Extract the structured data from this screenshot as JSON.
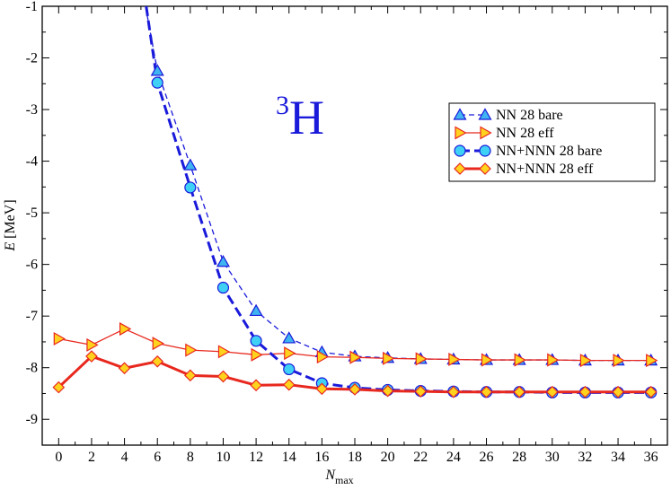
{
  "chart_data": {
    "type": "line",
    "annotation": {
      "mass_number": "3",
      "element": "H",
      "color": "#1a1adb"
    },
    "xlabel": {
      "main": "N",
      "sub": "max"
    },
    "ylabel": {
      "main": "E",
      "rest": " [MeV]"
    },
    "xlim": [
      -1,
      37
    ],
    "ylim": [
      -9.5,
      -1
    ],
    "xticks": [
      0,
      2,
      4,
      6,
      8,
      10,
      12,
      14,
      16,
      18,
      20,
      22,
      24,
      26,
      28,
      30,
      32,
      34,
      36
    ],
    "yticks": [
      -9,
      -8,
      -7,
      -6,
      -5,
      -4,
      -3,
      -2,
      -1
    ],
    "grid": false,
    "legend_position": "top-right",
    "series": [
      {
        "name": "NN 28 bare",
        "marker": "triangle-up",
        "line_color": "#1a1adb",
        "marker_fill": "#3fb4f0",
        "dash": "6,4",
        "line_width": 1.3,
        "x": [
          6,
          8,
          10,
          12,
          14,
          16,
          18,
          20,
          22,
          24,
          26,
          28,
          30,
          32,
          34,
          36
        ],
        "y": [
          -2.25,
          -4.08,
          -5.95,
          -6.9,
          -7.43,
          -7.7,
          -7.78,
          -7.81,
          -7.83,
          -7.84,
          -7.85,
          -7.85,
          -7.85,
          -7.86,
          -7.86,
          -7.86
        ],
        "curve_start": {
          "x": 5.28,
          "y": -1.0
        }
      },
      {
        "name": "NN 28 eff",
        "marker": "triangle-right",
        "line_color": "#e8281e",
        "marker_fill": "#ffd21e",
        "dash": "",
        "line_width": 1.3,
        "x": [
          0,
          2,
          4,
          6,
          8,
          10,
          12,
          14,
          16,
          18,
          20,
          22,
          24,
          26,
          28,
          30,
          32,
          34,
          36
        ],
        "y": [
          -7.44,
          -7.56,
          -7.25,
          -7.53,
          -7.66,
          -7.69,
          -7.75,
          -7.72,
          -7.79,
          -7.8,
          -7.82,
          -7.83,
          -7.84,
          -7.85,
          -7.85,
          -7.85,
          -7.86,
          -7.86,
          -7.86
        ]
      },
      {
        "name": "NN+NNN 28 bare",
        "marker": "circle",
        "line_color": "#1a1adb",
        "marker_fill": "#3fd0f5",
        "dash": "11,5",
        "line_width": 3,
        "x": [
          6,
          8,
          10,
          12,
          14,
          16,
          18,
          20,
          22,
          24,
          26,
          28,
          30,
          32,
          34,
          36
        ],
        "y": [
          -2.48,
          -4.51,
          -6.45,
          -7.48,
          -8.03,
          -8.3,
          -8.39,
          -8.43,
          -8.45,
          -8.46,
          -8.47,
          -8.47,
          -8.48,
          -8.48,
          -8.48,
          -8.48
        ],
        "curve_start": {
          "x": 5.32,
          "y": -1.0
        }
      },
      {
        "name": "NN+NNN 28 eff",
        "marker": "diamond",
        "line_color": "#e8281e",
        "marker_fill": "#ffd21e",
        "dash": "",
        "line_width": 3,
        "x": [
          0,
          2,
          4,
          6,
          8,
          10,
          12,
          14,
          16,
          18,
          20,
          22,
          24,
          26,
          28,
          30,
          32,
          34,
          36
        ],
        "y": [
          -8.38,
          -7.78,
          -8.01,
          -7.88,
          -8.15,
          -8.17,
          -8.34,
          -8.33,
          -8.41,
          -8.42,
          -8.45,
          -8.46,
          -8.47,
          -8.47,
          -8.47,
          -8.47,
          -8.47,
          -8.47,
          -8.47
        ]
      }
    ]
  }
}
